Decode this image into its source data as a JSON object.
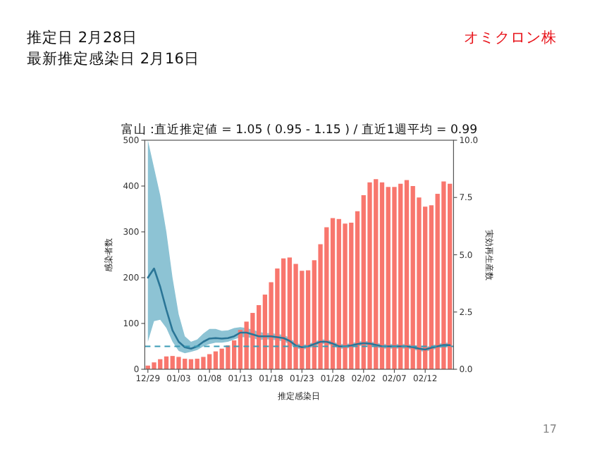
{
  "chart_data": {
    "type": "bar",
    "title": "富山 :直近推定値 = 1.05 ( 0.95 - 1.15 ) / 直近1週平均 = 0.99",
    "annotations": [
      "推定日  2月28日",
      "最新推定感染日  2月16日",
      "オミクロン株",
      "17"
    ],
    "xlabel": "推定感染日",
    "ylabel": "感染者数",
    "y2label": "実効再生産数",
    "categories": [
      "12/29",
      null,
      null,
      null,
      null,
      "01/03",
      null,
      null,
      null,
      null,
      "01/08",
      null,
      null,
      null,
      null,
      "01/13",
      null,
      null,
      null,
      null,
      "01/18",
      null,
      null,
      null,
      null,
      "01/23",
      null,
      null,
      null,
      null,
      "01/28",
      null,
      null,
      null,
      null,
      "02/02",
      null,
      null,
      null,
      null,
      "02/07",
      null,
      null,
      null,
      null,
      "02/12",
      null,
      null,
      null,
      null
    ],
    "ylim": [
      0,
      500
    ],
    "yticks": [
      0,
      100,
      200,
      300,
      400,
      500
    ],
    "y2lim": [
      0,
      10
    ],
    "y2ticks": [
      {
        "value": 0,
        "label": "0.0"
      },
      {
        "value": 2.5,
        "label": "2.5"
      },
      {
        "value": 5,
        "label": "5.0"
      },
      {
        "value": 7.5,
        "label": "7.5"
      },
      {
        "value": 10,
        "label": "10.0"
      }
    ],
    "series": [
      {
        "color": "#f8766d",
        "values": [
          8,
          15,
          22,
          28,
          29,
          27,
          23,
          22,
          23,
          27,
          33,
          39,
          45,
          52,
          63,
          86,
          104,
          123,
          140,
          163,
          190,
          220,
          242,
          244,
          230,
          215,
          216,
          238,
          273,
          310,
          330,
          328,
          318,
          320,
          345,
          380,
          408,
          415,
          408,
          398,
          398,
          405,
          413,
          400,
          375,
          355,
          358,
          383,
          410,
          405
        ]
      },
      {
        "type": "line",
        "axis": "y2",
        "color": "#2a7596",
        "values": [
          4.0,
          4.4,
          3.6,
          2.6,
          1.7,
          1.2,
          0.96,
          0.9,
          1.0,
          1.2,
          1.34,
          1.36,
          1.34,
          1.36,
          1.44,
          1.6,
          1.6,
          1.52,
          1.44,
          1.44,
          1.44,
          1.4,
          1.36,
          1.24,
          1.04,
          0.96,
          1.0,
          1.1,
          1.2,
          1.2,
          1.12,
          1.0,
          1.0,
          1.04,
          1.1,
          1.14,
          1.12,
          1.06,
          1.0,
          1.0,
          1.0,
          1.0,
          1.0,
          0.96,
          0.9,
          0.86,
          0.94,
          1.0,
          1.06,
          1.05
        ],
        "lower": [
          1.2,
          2.1,
          2.16,
          1.8,
          1.2,
          0.8,
          0.7,
          0.76,
          0.84,
          1.0,
          1.1,
          1.16,
          1.16,
          1.2,
          1.3,
          1.4,
          1.4,
          1.36,
          1.28,
          1.3,
          1.3,
          1.26,
          1.22,
          1.1,
          0.92,
          0.86,
          0.9,
          1.0,
          1.1,
          1.1,
          1.02,
          0.9,
          0.9,
          0.94,
          1.0,
          1.04,
          1.02,
          0.96,
          0.9,
          0.9,
          0.9,
          0.9,
          0.9,
          0.86,
          0.8,
          0.76,
          0.84,
          0.9,
          0.96,
          0.95
        ],
        "upper": [
          10,
          8.8,
          7.6,
          6,
          4,
          2.4,
          1.44,
          1.2,
          1.3,
          1.56,
          1.76,
          1.76,
          1.68,
          1.7,
          1.8,
          1.84,
          1.8,
          1.72,
          1.64,
          1.58,
          1.58,
          1.54,
          1.5,
          1.38,
          1.16,
          1.06,
          1.1,
          1.2,
          1.3,
          1.3,
          1.22,
          1.1,
          1.1,
          1.14,
          1.2,
          1.24,
          1.22,
          1.16,
          1.1,
          1.1,
          1.1,
          1.1,
          1.1,
          1.06,
          1.0,
          0.96,
          1.04,
          1.1,
          1.16,
          1.15
        ]
      }
    ],
    "ref_lines": [
      {
        "axis": "y2",
        "value": 1,
        "color": "#3a9bb5",
        "line_style": "dashed"
      }
    ]
  }
}
